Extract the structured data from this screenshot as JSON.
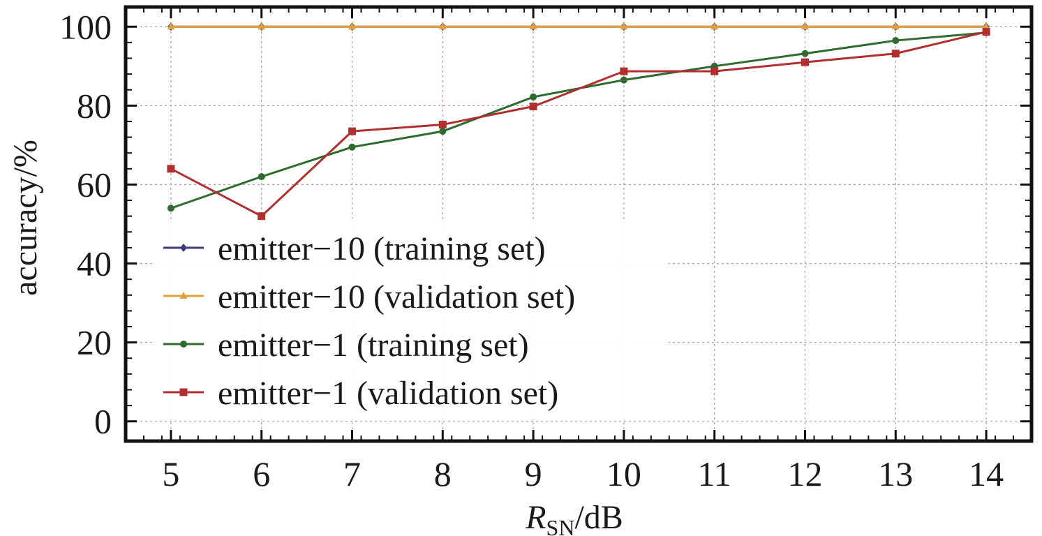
{
  "chart_data": {
    "type": "line",
    "title": "",
    "xlabel": {
      "main": "R",
      "sub": "SN",
      "rest": "/dB"
    },
    "ylabel": "accuracy/%",
    "x": [
      5,
      6,
      7,
      8,
      9,
      10,
      11,
      12,
      13,
      14
    ],
    "xlim": [
      4.5,
      14.5
    ],
    "ylim": [
      -5,
      105
    ],
    "yticks": [
      0,
      20,
      40,
      60,
      80,
      100
    ],
    "grid": true,
    "legend_position": "lower-left",
    "series": [
      {
        "name": "emitter−10 (training set)",
        "color": "#3b3b7a",
        "marker": "diamond",
        "values": [
          100,
          100,
          100,
          100,
          100,
          100,
          100,
          100,
          100,
          100
        ]
      },
      {
        "name": "emitter−10 (validation set)",
        "color": "#e0a13c",
        "marker": "triangle",
        "values": [
          100,
          100,
          100,
          100,
          100,
          100,
          100,
          100,
          100,
          100
        ]
      },
      {
        "name": "emitter−1 (training set)",
        "color": "#2e6b2e",
        "marker": "circle",
        "values": [
          54,
          62,
          69.5,
          73.5,
          82.2,
          86.5,
          90,
          93.2,
          96.5,
          98.5
        ]
      },
      {
        "name": "emitter−1 (validation set)",
        "color": "#b03030",
        "marker": "square",
        "values": [
          64,
          52,
          73.5,
          75.2,
          79.8,
          88.7,
          88.7,
          91,
          93.2,
          98.7
        ]
      }
    ]
  }
}
